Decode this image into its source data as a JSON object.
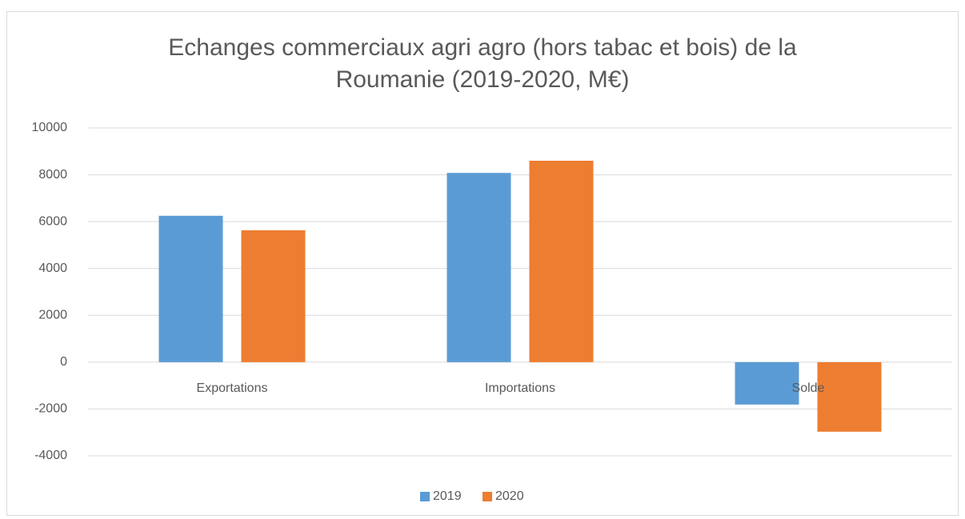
{
  "chart_data": {
    "type": "bar",
    "title": "Echanges commerciaux agri agro (hors tabac et bois) de la Roumanie (2019-2020, M€)",
    "categories": [
      "Exportations",
      "Importations",
      "Solde"
    ],
    "series": [
      {
        "name": "2019",
        "color": "#5b9bd5",
        "values": [
          6250,
          8080,
          -1810
        ]
      },
      {
        "name": "2020",
        "color": "#ed7d31",
        "values": [
          5630,
          8600,
          -2970
        ]
      }
    ],
    "ylim": [
      -4000,
      10000
    ],
    "yticks": [
      -4000,
      -2000,
      0,
      2000,
      4000,
      6000,
      8000,
      10000
    ],
    "grid": true,
    "legend": "bottom"
  }
}
